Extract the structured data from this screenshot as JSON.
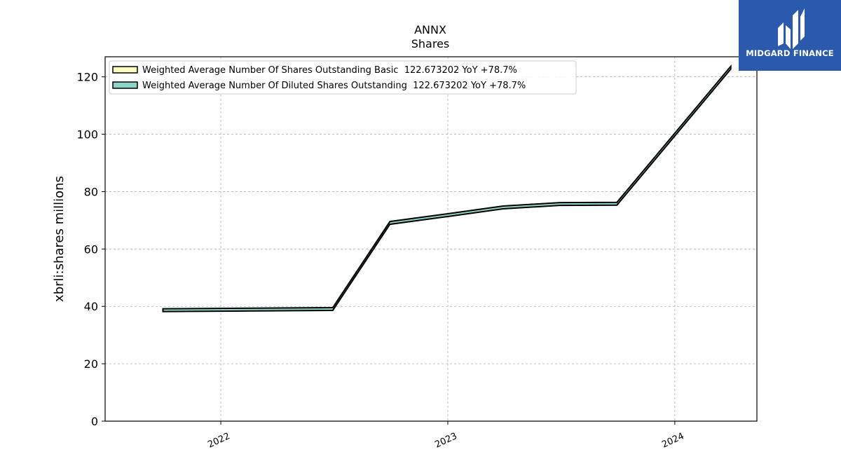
{
  "chart_data": {
    "type": "area",
    "title": "ANNX",
    "subtitle": "Shares",
    "xlabel": "",
    "ylabel": "xbrli:shares millions",
    "ylim": [
      0,
      127
    ],
    "xlim": [
      "2021-06-29",
      "2024-05-12"
    ],
    "yticks": [
      0,
      20,
      40,
      60,
      80,
      100,
      120
    ],
    "xticks": [
      "2022",
      "2023",
      "2024"
    ],
    "xtick_dates": [
      "2022-01-01",
      "2023-01-01",
      "2024-01-01"
    ],
    "grid": true,
    "legend_position": "top-left",
    "series": [
      {
        "name": "Weighted Average Number Of Shares Outstanding Basic  122.673202 YoY +78.7%",
        "color": "#ffffc0",
        "x": [
          "2021-09-30",
          "2022-06-30",
          "2022-09-30",
          "2022-12-31",
          "2023-03-31",
          "2023-06-30",
          "2023-09-30",
          "2024-03-31"
        ],
        "values": [
          38.2,
          38.6,
          68.6,
          71.3,
          74.0,
          75.2,
          75.3,
          122.7
        ]
      },
      {
        "name": "Weighted Average Number Of Diluted Shares Outstanding  122.673202 YoY +78.7%",
        "color": "#8dd3c7",
        "x": [
          "2021-09-30",
          "2022-06-30",
          "2022-09-30",
          "2022-12-31",
          "2023-03-31",
          "2023-06-30",
          "2023-09-30",
          "2024-03-31"
        ],
        "values": [
          38.2,
          38.6,
          68.6,
          71.3,
          74.0,
          75.2,
          75.3,
          122.7
        ]
      }
    ]
  },
  "logo": {
    "text": "MIDGARD FINANCE",
    "background": "#2b5aad"
  }
}
